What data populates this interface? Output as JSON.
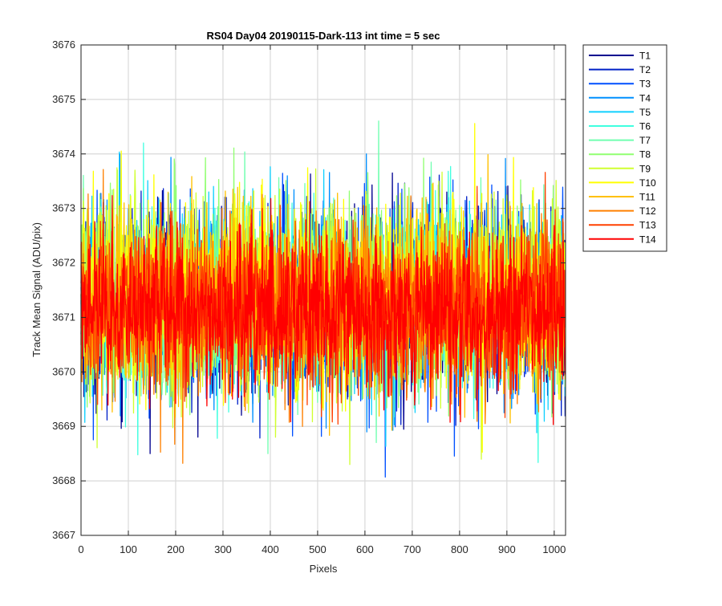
{
  "chart_data": {
    "type": "line",
    "title": "RS04 Day04 20190115-Dark-113 int time = 5 sec",
    "xlabel": "Pixels",
    "ylabel": "Track Mean Signal (ADU/pix)",
    "xlim": [
      0,
      1024
    ],
    "ylim": [
      3667,
      3676
    ],
    "xticks": [
      0,
      100,
      200,
      300,
      400,
      500,
      600,
      700,
      800,
      900,
      1000
    ],
    "yticks": [
      3667,
      3668,
      3669,
      3670,
      3671,
      3672,
      3673,
      3674,
      3675,
      3676
    ],
    "grid": true,
    "legend_position": "outside-top-right",
    "num_points": 1024,
    "series": [
      {
        "name": "T1",
        "color": "#00008f",
        "mean": 3671.25,
        "spread": 0.8,
        "min": 3668.5,
        "max": 3674.6
      },
      {
        "name": "T2",
        "color": "#0020c8",
        "mean": 3671.25,
        "spread": 0.8,
        "min": 3667.7,
        "max": 3673.9
      },
      {
        "name": "T3",
        "color": "#0050ff",
        "mean": 3671.25,
        "spread": 0.8,
        "min": 3667.9,
        "max": 3674.0
      },
      {
        "name": "T4",
        "color": "#0090ff",
        "mean": 3671.25,
        "spread": 0.8,
        "min": 3668.0,
        "max": 3674.0
      },
      {
        "name": "T5",
        "color": "#10d0ff",
        "mean": 3671.3,
        "spread": 0.8,
        "min": 3668.2,
        "max": 3674.1
      },
      {
        "name": "T6",
        "color": "#40ffe0",
        "mean": 3671.3,
        "spread": 0.8,
        "min": 3667.8,
        "max": 3674.2
      },
      {
        "name": "T7",
        "color": "#70ffb0",
        "mean": 3671.35,
        "spread": 0.8,
        "min": 3668.5,
        "max": 3675.0
      },
      {
        "name": "T8",
        "color": "#90ff70",
        "mean": 3671.4,
        "spread": 0.85,
        "min": 3668.3,
        "max": 3675.4
      },
      {
        "name": "T9",
        "color": "#d0ff30",
        "mean": 3671.4,
        "spread": 0.85,
        "min": 3668.3,
        "max": 3674.9
      },
      {
        "name": "T10",
        "color": "#ffff00",
        "mean": 3671.4,
        "spread": 0.85,
        "min": 3668.3,
        "max": 3675.0
      },
      {
        "name": "T11",
        "color": "#ffc000",
        "mean": 3671.3,
        "spread": 0.8,
        "min": 3668.0,
        "max": 3675.0
      },
      {
        "name": "T12",
        "color": "#ff8000",
        "mean": 3671.2,
        "spread": 0.75,
        "min": 3668.0,
        "max": 3674.2
      },
      {
        "name": "T13",
        "color": "#ff4000",
        "mean": 3671.15,
        "spread": 0.75,
        "min": 3668.0,
        "max": 3674.0
      },
      {
        "name": "T14",
        "color": "#ff0000",
        "mean": 3671.1,
        "spread": 0.7,
        "min": 3668.5,
        "max": 3674.1
      }
    ]
  }
}
